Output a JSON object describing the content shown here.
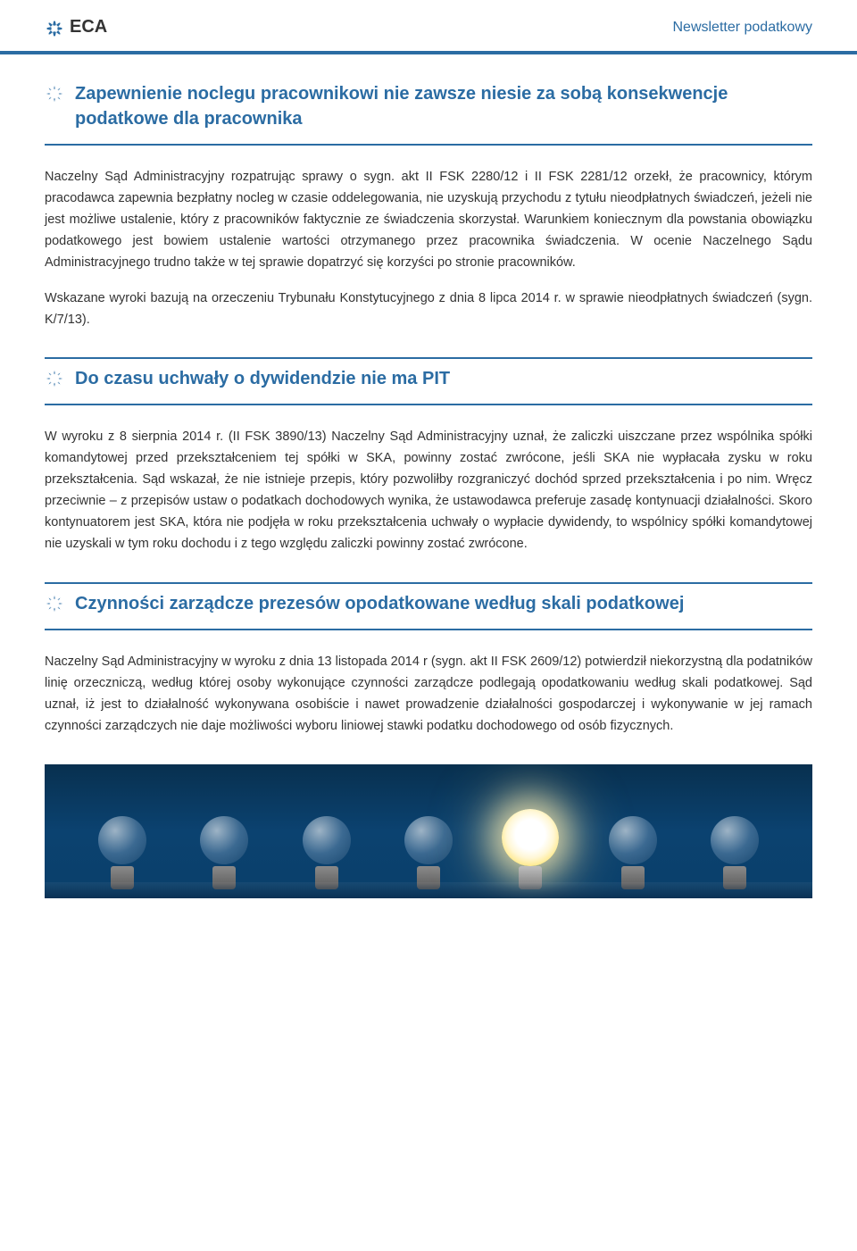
{
  "header": {
    "logo_text": "ECA",
    "newsletter_label": "Newsletter podatkowy"
  },
  "colors": {
    "primary": "#2b6ca3",
    "text": "#333333",
    "background": "#ffffff",
    "footer_bg_top": "#08304f",
    "footer_bg_mid": "#0b4270"
  },
  "sections": [
    {
      "title": "Zapewnienie noclegu pracownikowi nie zawsze niesie za sobą konsekwencje podatkowe dla pracownika",
      "paragraphs": [
        "Naczelny Sąd Administracyjny rozpatrując sprawy o sygn. akt II FSK 2280/12 i II FSK 2281/12 orzekł, że pracownicy, którym pracodawca zapewnia bezpłatny nocleg w czasie oddelegowania, nie uzyskują przychodu z tytułu nieodpłatnych świadczeń, jeżeli nie jest możliwe ustalenie, który z pracowników faktycznie ze świadczenia skorzystał. Warunkiem koniecznym dla powstania obowiązku podatkowego jest bowiem ustalenie wartości otrzymanego przez pracownika świadczenia. W ocenie Naczelnego Sądu Administracyjnego trudno także w tej sprawie dopatrzyć się korzyści po stronie pracowników.",
        "Wskazane wyroki bazują na orzeczeniu Trybunału Konstytucyjnego z dnia 8 lipca 2014 r. w sprawie nieodpłatnych świadczeń (sygn. K/7/13)."
      ]
    },
    {
      "title": "Do czasu uchwały o dywidendzie nie ma PIT",
      "paragraphs": [
        "W wyroku z 8 sierpnia 2014 r. (II FSK 3890/13) Naczelny Sąd Administracyjny uznał, że zaliczki uiszczane przez wspólnika spółki komandytowej przed przekształceniem tej spółki w SKA, powinny zostać zwrócone, jeśli SKA nie wypłacała zysku w roku przekształcenia. Sąd wskazał, że nie istnieje przepis, który pozwoliłby rozgraniczyć dochód sprzed przekształcenia i po nim. Wręcz przeciwnie – z przepisów ustaw o podatkach dochodowych wynika, że ustawodawca preferuje zasadę kontynuacji działalności. Skoro kontynuatorem jest SKA, która nie podjęła w roku przekształcenia uchwały o wypłacie dywidendy, to wspólnicy spółki komandytowej nie uzyskali w tym roku dochodu i z tego względu zaliczki powinny zostać zwrócone."
      ]
    },
    {
      "title": "Czynności zarządcze prezesów opodatkowane według skali podatkowej",
      "paragraphs": [
        "Naczelny Sąd Administracyjny w wyroku z dnia 13 listopada 2014 r (sygn. akt II FSK 2609/12) potwierdził niekorzystną dla podatników linię orzeczniczą, według której osoby wykonujące czynności zarządcze podlegają opodatkowaniu według skali podatkowej. Sąd uznał, iż jest to działalność wykonywana osobiście i nawet prowadzenie działalności gospodarczej i wykonywanie w jej ramach czynności zarządczych nie daje możliwości wyboru liniowej stawki podatku dochodowego od osób fizycznych."
      ]
    }
  ],
  "footer_image": {
    "bulb_count": 7,
    "lit_index": 4
  }
}
